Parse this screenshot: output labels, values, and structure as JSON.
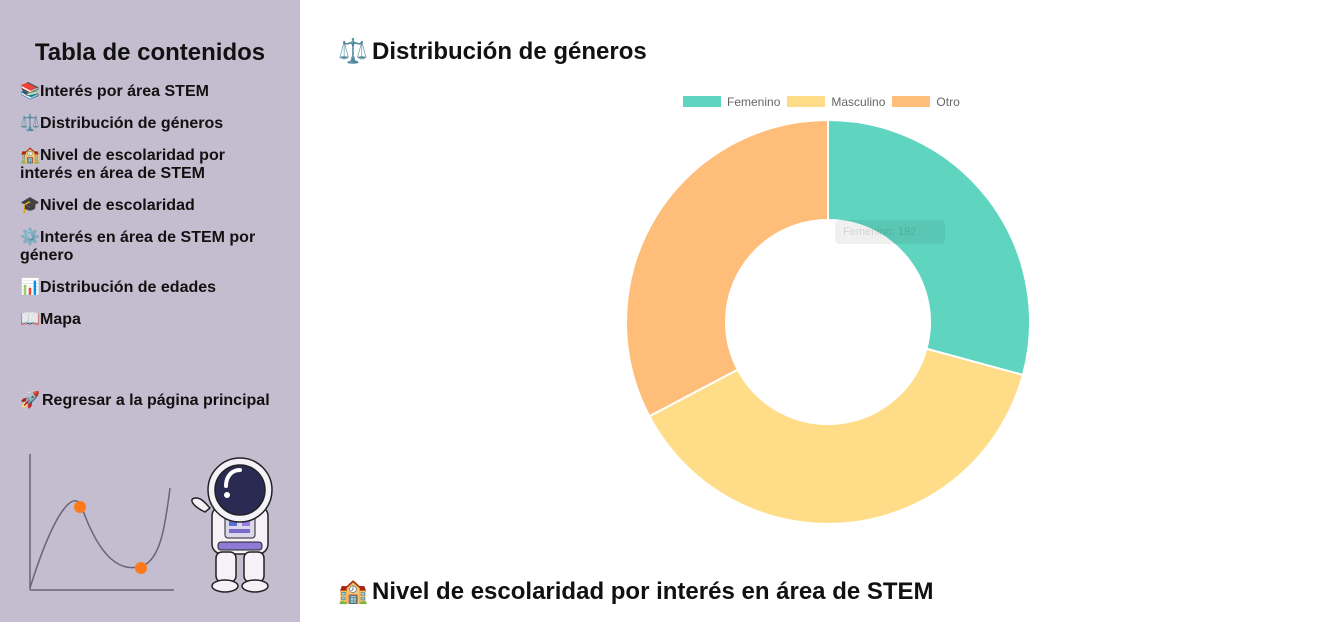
{
  "sidebar": {
    "title": "Tabla de contenidos",
    "items": [
      {
        "icon": "📚",
        "icon_name": "books-icon",
        "label": "Interés por área STEM"
      },
      {
        "icon": "⚖️",
        "icon_name": "balance-scale-icon",
        "label": "Distribución de géneros"
      },
      {
        "icon": "🏫",
        "icon_name": "school-icon",
        "label": "Nivel de escolaridad por interés en área de STEM"
      },
      {
        "icon": "🎓",
        "icon_name": "graduation-cap-icon",
        "label": "Nivel de escolaridad"
      },
      {
        "icon": "⚙️",
        "icon_name": "gear-icon",
        "label": "Interés en área de STEM por género"
      },
      {
        "icon": "📊",
        "icon_name": "bar-chart-icon",
        "label": "Distribución de edades"
      },
      {
        "icon": "📖",
        "icon_name": "map-book-icon",
        "label": "Mapa"
      }
    ],
    "home_link": {
      "icon": "🚀",
      "icon_name": "rocket-icon",
      "label": "Regresar a la página principal"
    }
  },
  "main": {
    "section1": {
      "icon": "⚖️",
      "title": "Distribución de géneros"
    },
    "section2": {
      "icon": "🏫",
      "title": "Nivel de escolaridad por interés en área de STEM"
    },
    "tooltip": "Femenino: 192"
  },
  "colors": {
    "sidebar_bg": "#c4bccf",
    "femenino": "#5fd4bf",
    "masculino": "#ffdd88",
    "otro": "#ffbd7a"
  },
  "chart_data": {
    "type": "pie",
    "categories": [
      "Femenino",
      "Masculino",
      "Otro"
    ],
    "values": [
      192,
      250,
      215
    ],
    "colors": [
      "#5fd4bf",
      "#ffdd88",
      "#ffbd7a"
    ],
    "legend_position": "top",
    "donut": true
  }
}
